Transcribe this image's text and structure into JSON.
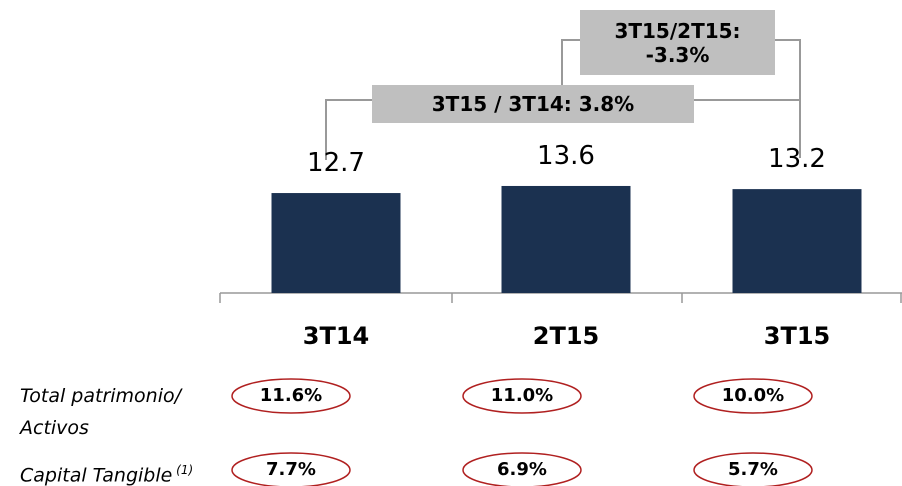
{
  "chart_data": {
    "type": "bar",
    "categories": [
      "3T14",
      "2T15",
      "3T15"
    ],
    "values": [
      12.7,
      13.6,
      13.2
    ],
    "color": "#1b3150",
    "annotations": [
      "3T15/2T15: -3.3%",
      "3T15 / 3T14: 3.8%"
    ],
    "ratios": [
      {
        "label": "Total patrimonio/ Activos",
        "values": [
          "11.6%",
          "11.0%",
          "10.0%"
        ]
      },
      {
        "label": "Capital Tangible",
        "note": "(1)",
        "values": [
          "7.7%",
          "6.9%",
          "5.7%"
        ]
      }
    ]
  }
}
